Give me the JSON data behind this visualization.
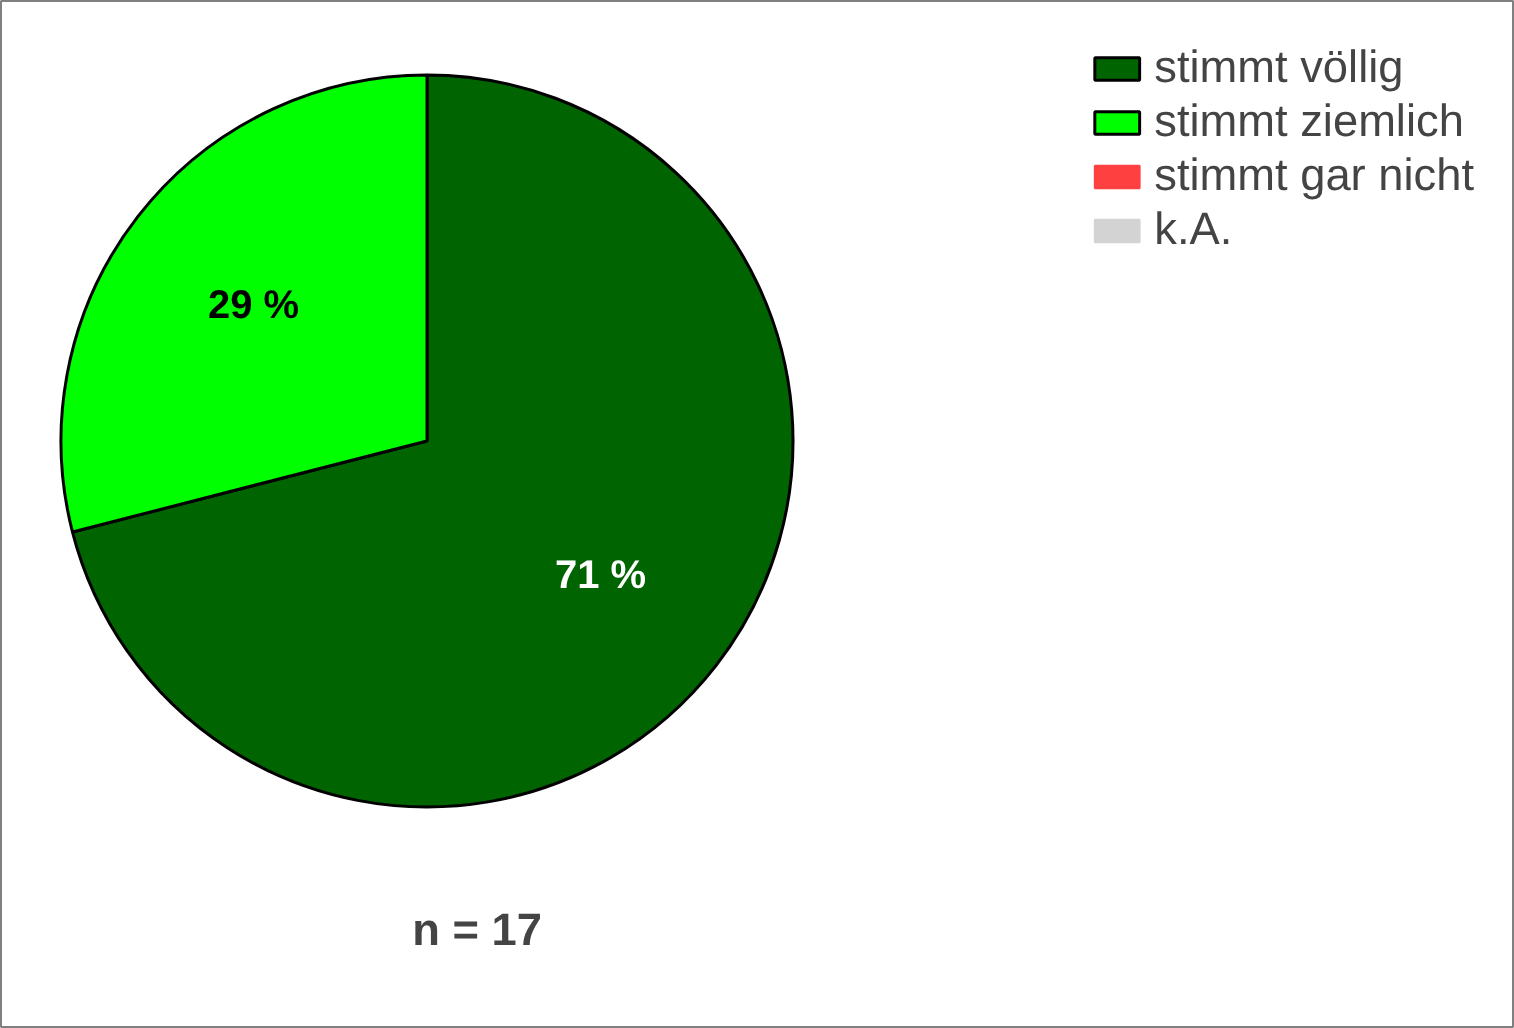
{
  "chart_data": {
    "type": "pie",
    "categories": [
      "stimmt völlig",
      "stimmt ziemlich",
      "stimmt gar nicht",
      "k.A."
    ],
    "values": [
      71,
      29,
      0,
      0
    ],
    "colors": [
      "#006400",
      "#00ff00",
      "#ff4040",
      "#d3d3d3"
    ],
    "value_labels": [
      "71 %",
      "29 %",
      null,
      null
    ],
    "legend": "top right",
    "annotations": [
      "n = 17"
    ]
  }
}
